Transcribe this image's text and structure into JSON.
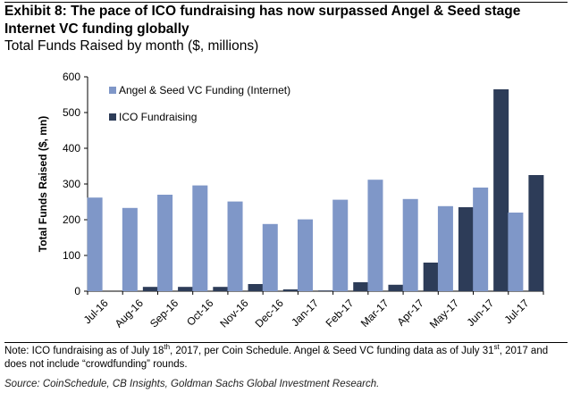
{
  "header": {
    "title": "Exhibit 8: The pace of ICO fundraising has now surpassed Angel & Seed stage Internet VC funding globally",
    "subtitle": "Total Funds Raised by month ($, millions)"
  },
  "footer": {
    "note_part1": "Note: ICO fundraising as of July 18",
    "note_sup1": "th",
    "note_part2": ", 2017, per Coin Schedule. Angel & Seed VC funding data as of July 31",
    "note_sup2": "st",
    "note_part3": ", 2017 and does not include “crowdfunding” rounds.",
    "source": "Source: CoinSchedule, CB Insights, Goldman Sachs Global Investment Research."
  },
  "chart_data": {
    "type": "bar",
    "title": "Total Funds Raised by month ($, millions)",
    "xlabel": "",
    "ylabel": "Total Funds Raised ($, mn)",
    "ylim": [
      0,
      600
    ],
    "yticks": [
      0,
      100,
      200,
      300,
      400,
      500,
      600
    ],
    "grid": false,
    "legend_position": "top-left",
    "categories": [
      "Jul-16",
      "Aug-16",
      "Sep-16",
      "Oct-16",
      "Nov-16",
      "Dec-16",
      "Jan-17",
      "Feb-17",
      "Mar-17",
      "Apr-17",
      "May-17",
      "Jun-17",
      "Jul-17"
    ],
    "series": [
      {
        "name": "Angel & Seed VC Funding (Internet)",
        "color": "#7f97c8",
        "values": [
          262,
          233,
          270,
          296,
          251,
          188,
          201,
          256,
          312,
          258,
          238,
          290,
          220
        ]
      },
      {
        "name": "ICO Fundraising",
        "color": "#2d3c58",
        "values": [
          0,
          12,
          12,
          12,
          20,
          5,
          2,
          25,
          18,
          80,
          235,
          565,
          325
        ]
      }
    ]
  }
}
